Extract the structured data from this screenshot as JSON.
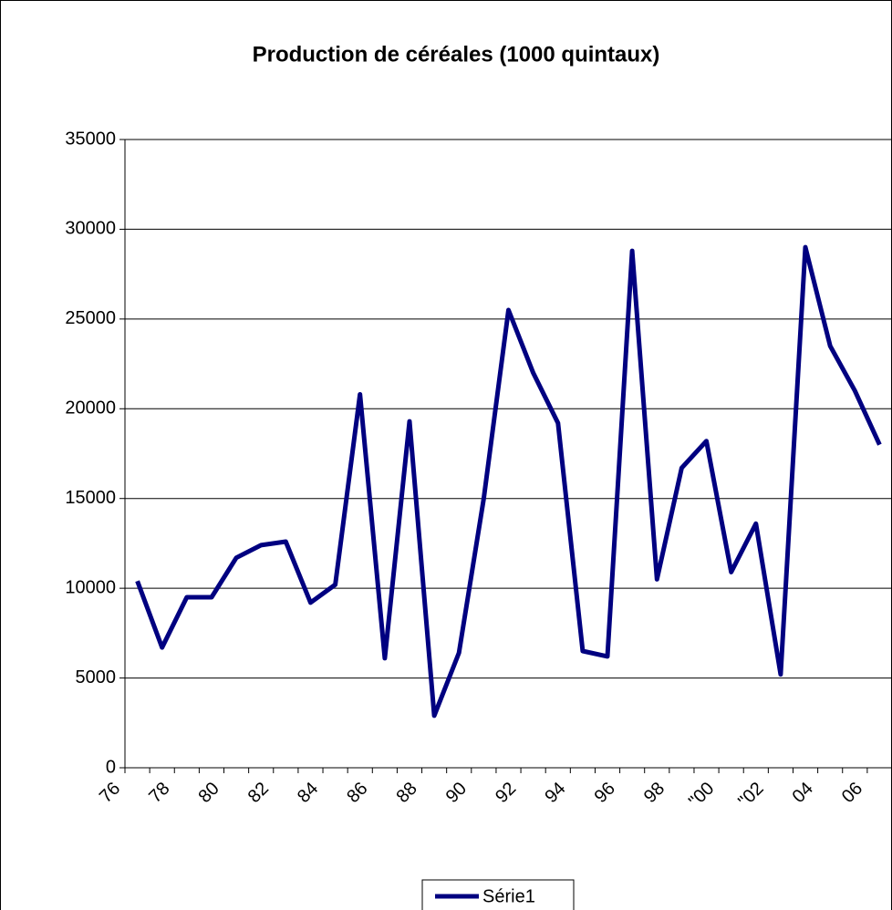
{
  "chart_data": {
    "type": "line",
    "title": "Production de céréales (1000 quintaux)",
    "categories": [
      "76",
      null,
      "78",
      null,
      "80",
      null,
      "82",
      null,
      "84",
      null,
      "86",
      null,
      "88",
      null,
      "90",
      null,
      "92",
      null,
      "94",
      null,
      "96",
      null,
      "98",
      null,
      "\"00",
      null,
      "\"02",
      null,
      "04",
      null,
      "06"
    ],
    "series": [
      {
        "name": "Série1",
        "color": "#000080",
        "values": [
          10400,
          6700,
          9500,
          9500,
          11700,
          12400,
          12600,
          9200,
          10200,
          20800,
          6100,
          19300,
          2900,
          6400,
          15000,
          25500,
          22000,
          19200,
          6500,
          6200,
          28800,
          10500,
          16700,
          18200,
          10900,
          13600,
          5200,
          29000,
          23500,
          21000,
          18000
        ]
      }
    ],
    "ylim": [
      0,
      35000
    ],
    "yticks": [
      0,
      5000,
      10000,
      15000,
      20000,
      25000,
      30000,
      35000
    ],
    "grid": true,
    "legend": "bottom"
  }
}
